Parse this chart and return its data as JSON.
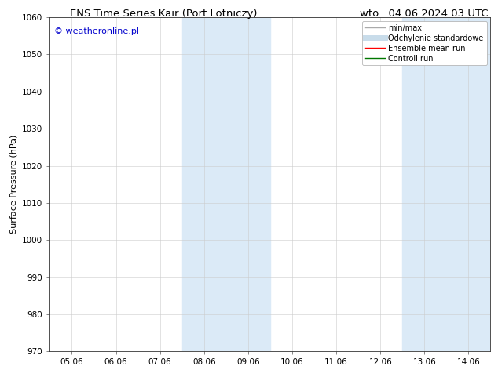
{
  "title_left": "ENS Time Series Kair (Port Lotniczy)",
  "title_right": "wto.. 04.06.2024 03 UTC",
  "ylabel": "Surface Pressure (hPa)",
  "watermark": "© weatheronline.pl",
  "watermark_color": "#0000cc",
  "ylim": [
    970,
    1060
  ],
  "yticks": [
    970,
    980,
    990,
    1000,
    1010,
    1020,
    1030,
    1040,
    1050,
    1060
  ],
  "xtick_labels": [
    "05.06",
    "06.06",
    "07.06",
    "08.06",
    "09.06",
    "10.06",
    "11.06",
    "12.06",
    "13.06",
    "14.06"
  ],
  "xtick_positions": [
    0,
    1,
    2,
    3,
    4,
    5,
    6,
    7,
    8,
    9
  ],
  "xlim": [
    -0.5,
    9.5
  ],
  "bg_color": "#ffffff",
  "shaded_regions": [
    {
      "x_start": 2.5,
      "x_end": 4.5,
      "color": "#dbeaf7"
    },
    {
      "x_start": 7.5,
      "x_end": 9.5,
      "color": "#dbeaf7"
    }
  ],
  "legend_entries": [
    {
      "label": "min/max",
      "color": "#aaaaaa",
      "linewidth": 1.0,
      "linestyle": "-"
    },
    {
      "label": "Odchylenie standardowe",
      "color": "#c8dcea",
      "linewidth": 5,
      "linestyle": "-"
    },
    {
      "label": "Ensemble mean run",
      "color": "#ff0000",
      "linewidth": 1.0,
      "linestyle": "-"
    },
    {
      "label": "Controll run",
      "color": "#007700",
      "linewidth": 1.0,
      "linestyle": "-"
    }
  ],
  "title_fontsize": 9.5,
  "label_fontsize": 8,
  "tick_fontsize": 7.5,
  "legend_fontsize": 7,
  "watermark_fontsize": 8
}
